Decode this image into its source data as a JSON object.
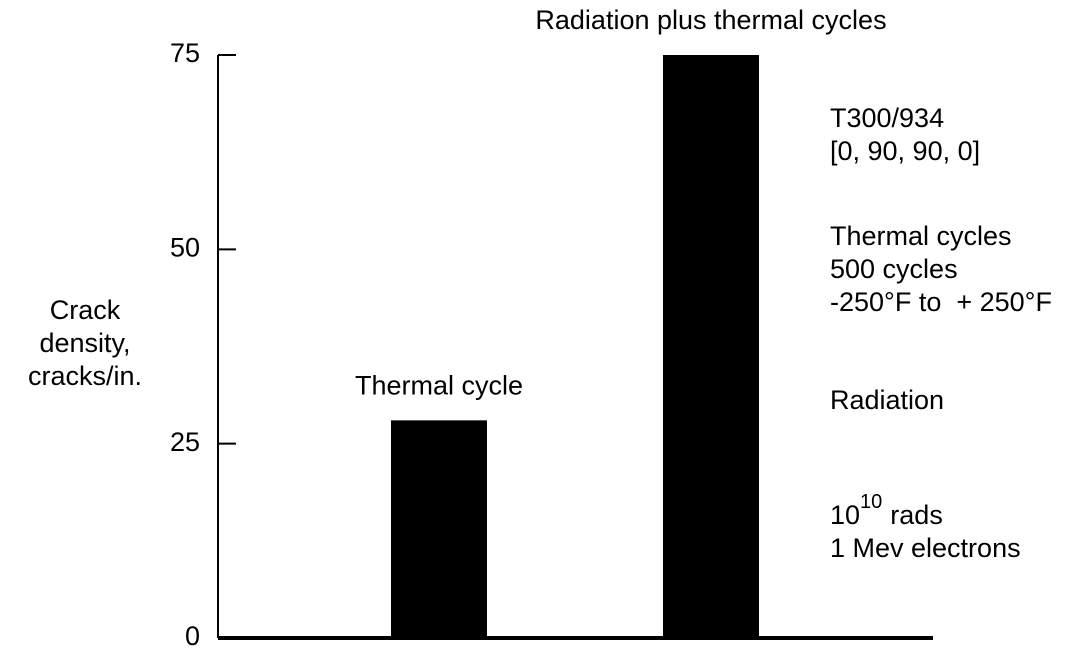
{
  "chart_data": {
    "type": "bar",
    "categories": [
      "Thermal cycle",
      "Radiation plus thermal cycles"
    ],
    "values": [
      28,
      75
    ],
    "color": "#000000",
    "ylim": [
      0,
      75
    ],
    "yticks": [
      0,
      25,
      50,
      75
    ],
    "grid": false,
    "ylabel": [
      "Crack",
      "density,",
      "cracks/in."
    ],
    "annotations": {
      "material": [
        "T300/934",
        "[0, 90, 90, 0]"
      ],
      "thermal": [
        "Thermal cycles",
        "500 cycles",
        "-250°F to  + 250°F"
      ],
      "radiation": "Radiation",
      "dose": {
        "base": "10",
        "exponent": "10",
        "unit": "rads"
      },
      "particles": "1 Mev electrons"
    }
  }
}
